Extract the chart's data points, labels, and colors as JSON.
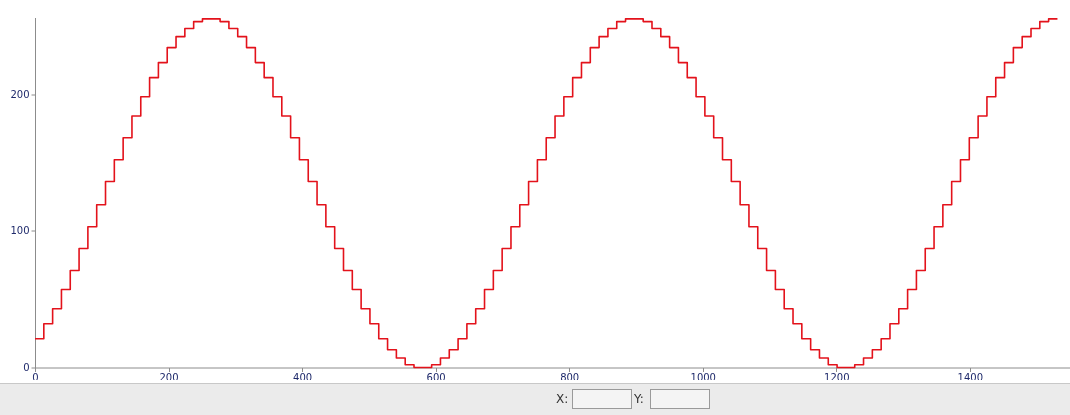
{
  "chart_data": {
    "type": "step",
    "xlim": [
      0,
      1550
    ],
    "ylim": [
      0,
      256
    ],
    "xticks": [
      0,
      200,
      400,
      600,
      800,
      1000,
      1200,
      1400
    ],
    "yticks": [
      0,
      100,
      200
    ],
    "grid": false,
    "marker": "none",
    "line_style": "solid",
    "annotations": [
      "X:",
      "Y:"
    ],
    "x": [
      0,
      13.2,
      26.4,
      39.6,
      52.8,
      66,
      79.2,
      92.4,
      105.6,
      118.8,
      132,
      145.2,
      158.4,
      171.6,
      184.8,
      198,
      211.2,
      224.4,
      237.6,
      250.8,
      264,
      277.2,
      290.4,
      303.6,
      316.8,
      330,
      343.2,
      356.4,
      369.6,
      382.8,
      396,
      409.2,
      422.4,
      435.6,
      448.8,
      462,
      475.2,
      488.4,
      501.6,
      514.8,
      528,
      541.2,
      554.4,
      567.6,
      580.8,
      594,
      607.2,
      620.4,
      633.6,
      646.8,
      660,
      673.2,
      686.4,
      699.6,
      712.8,
      726,
      739.2,
      752.4,
      765.6,
      778.8,
      792,
      805.2,
      818.4,
      831.6,
      844.8,
      858,
      871.2,
      884.4,
      897.6,
      910.8,
      924,
      937.2,
      950.4,
      963.6,
      976.8,
      990,
      1003.2,
      1016.4,
      1029.6,
      1042.8,
      1056,
      1069.2,
      1082.4,
      1095.6,
      1108.8,
      1122,
      1135.2,
      1148.4,
      1161.6,
      1174.8,
      1188,
      1201.2,
      1214.4,
      1227.6,
      1240.8,
      1254,
      1267.2,
      1280.4,
      1293.6,
      1306.8,
      1320,
      1333.2,
      1346.4,
      1359.6,
      1372.8,
      1386,
      1399.2,
      1412.4,
      1425.6,
      1438.8,
      1452,
      1465.2,
      1478.4,
      1491.6,
      1504.8,
      1518,
      1531.2
    ],
    "series": [
      {
        "color": "#e3121b",
        "values": [
          21,
          32,
          43,
          57,
          71,
          87,
          103,
          119,
          136,
          152,
          168,
          184,
          198,
          212,
          223,
          234,
          242,
          248,
          253,
          255,
          255,
          253,
          248,
          242,
          234,
          223,
          212,
          198,
          184,
          168,
          152,
          136,
          119,
          103,
          87,
          71,
          57,
          43,
          32,
          21,
          13,
          7,
          2,
          0,
          0,
          2,
          7,
          13,
          21,
          32,
          43,
          57,
          71,
          87,
          103,
          119,
          136,
          152,
          168,
          184,
          198,
          212,
          223,
          234,
          242,
          248,
          253,
          255,
          255,
          253,
          248,
          242,
          234,
          223,
          212,
          198,
          184,
          168,
          152,
          136,
          119,
          103,
          87,
          71,
          57,
          43,
          32,
          21,
          13,
          7,
          2,
          0,
          0,
          2,
          7,
          13,
          21,
          32,
          43,
          57,
          71,
          87,
          103,
          119,
          136,
          152,
          168,
          184,
          198,
          212,
          223,
          234,
          242,
          248,
          253,
          255,
          255
        ]
      }
    ]
  }
}
